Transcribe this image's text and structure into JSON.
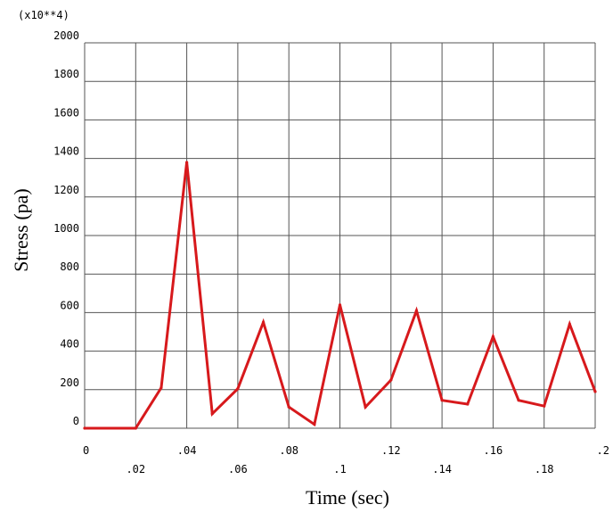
{
  "chart_data": {
    "type": "line",
    "xlabel": "Time (sec)",
    "ylabel": "Stress (pa)",
    "scale_label": "(x10**4)",
    "xlim": [
      0,
      0.2
    ],
    "ylim": [
      0,
      2000
    ],
    "x_ticks": [
      "0",
      ".02",
      ".04",
      ".06",
      ".08",
      ".1",
      ".12",
      ".14",
      ".16",
      ".18",
      ".2"
    ],
    "y_ticks": [
      "0",
      "200",
      "400",
      "600",
      "800",
      "1000",
      "1200",
      "1400",
      "1600",
      "1800",
      "2000"
    ],
    "grid": true,
    "line_color": "#d7191c",
    "series": [
      {
        "x": [
          0,
          0.02,
          0.03,
          0.04,
          0.05,
          0.06,
          0.07,
          0.08,
          0.09,
          0.1,
          0.11,
          0.12,
          0.13,
          0.14,
          0.15,
          0.16,
          0.17,
          0.18,
          0.19,
          0.2
        ],
        "values": [
          0,
          0,
          210,
          1380,
          75,
          205,
          550,
          110,
          20,
          640,
          110,
          250,
          610,
          145,
          125,
          475,
          145,
          115,
          540,
          190
        ]
      }
    ]
  }
}
